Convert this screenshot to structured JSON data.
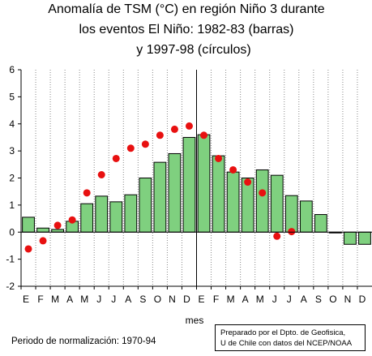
{
  "chart_data": {
    "type": "bar",
    "title_lines": [
      "Anomalía de TSM (°C) en región Niño 3 durante",
      "los eventos El Niño: 1982-83 (barras)",
      "y 1997-98 (círculos)"
    ],
    "xlabel": "mes",
    "ylim": [
      -2,
      6
    ],
    "yticks": [
      -2,
      -1,
      0,
      1,
      2,
      3,
      4,
      5,
      6
    ],
    "categories": [
      "E",
      "F",
      "M",
      "A",
      "M",
      "J",
      "J",
      "A",
      "S",
      "O",
      "N",
      "D",
      "E",
      "F",
      "M",
      "A",
      "M",
      "J",
      "J",
      "A",
      "S",
      "O",
      "N",
      "D"
    ],
    "series": [
      {
        "name": "1982-83",
        "kind": "bar",
        "values": [
          0.55,
          0.15,
          0.1,
          0.4,
          1.05,
          1.33,
          1.12,
          1.38,
          2.0,
          2.58,
          2.9,
          3.5,
          3.6,
          2.82,
          2.22,
          2.0,
          2.3,
          2.1,
          1.35,
          1.15,
          0.65,
          -0.02,
          -0.45,
          -0.45
        ]
      },
      {
        "name": "1997-98",
        "kind": "circle",
        "values": [
          -0.62,
          -0.32,
          0.25,
          0.45,
          1.45,
          2.12,
          2.72,
          3.1,
          3.25,
          3.58,
          3.8,
          3.92,
          3.58,
          2.72,
          2.3,
          1.85,
          1.45,
          -0.15,
          0.02,
          null,
          null,
          null,
          null,
          null
        ]
      }
    ],
    "bar_color": "#7fd07f",
    "bar_edge": "#000000",
    "circle_color": "#e81010",
    "grid": "vertical-dotted"
  },
  "footnote": "Periodo de normalización: 1970-94",
  "credit": {
    "line1": "Preparado por el Dpto. de Geofisica,",
    "line2": "U de Chile con datos del NCEP/NOAA"
  }
}
